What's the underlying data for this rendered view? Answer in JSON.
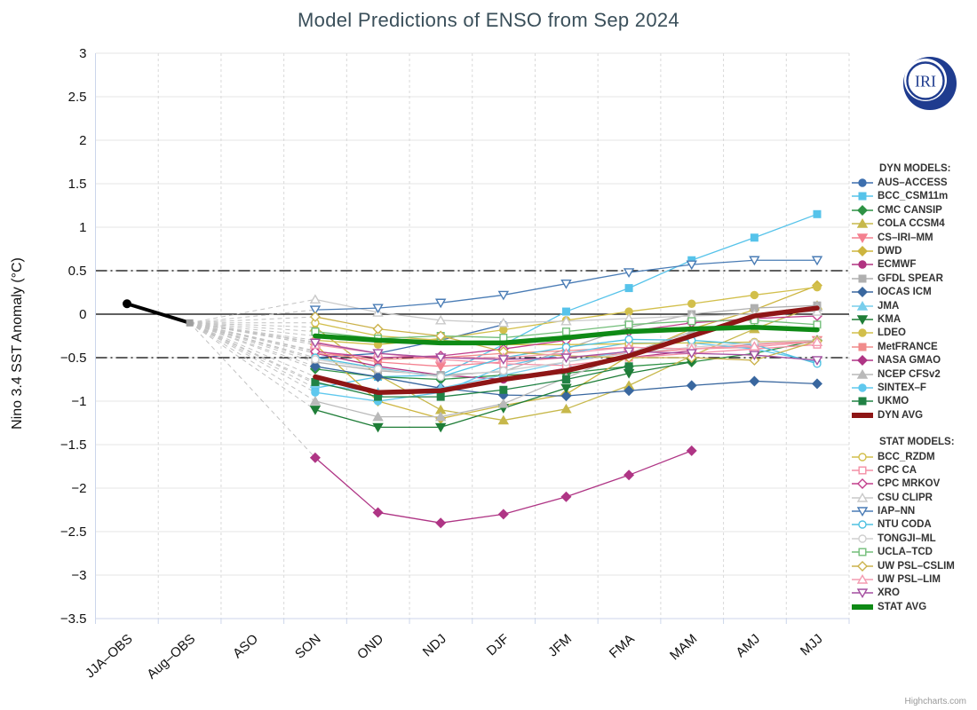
{
  "title": "Model Predictions of ENSO from Sep 2024",
  "logo_text": "IRI",
  "credits": "Highcharts.com",
  "legend": {
    "dyn_header": "DYN MODELS:",
    "stat_header": "STAT MODELS:"
  },
  "chart_data": {
    "type": "line",
    "title": "Model Predictions of ENSO from Sep 2024",
    "xlabel": "",
    "ylabel": "Nino 3.4 SST Anomaly (°C)",
    "ylim": [
      -3.5,
      3
    ],
    "ytick_step": 0.5,
    "grid": true,
    "legend_position": "right",
    "reference_lines": [
      0.5,
      0,
      -0.5
    ],
    "categories": [
      "JJA–OBS",
      "Aug–OBS",
      "ASO",
      "SON",
      "OND",
      "NDJ",
      "DJF",
      "JFM",
      "FMA",
      "MAM",
      "AMJ",
      "MJJ"
    ],
    "observation": {
      "name": "OBS",
      "color": "#000000",
      "marker": "circle",
      "filled": true,
      "width": 4,
      "values": [
        0.12,
        -0.1,
        null,
        null,
        null,
        null,
        null,
        null,
        null,
        null,
        null,
        null
      ]
    },
    "fan_color": "#c2c2c2",
    "series": [
      {
        "name": "AUS–ACCESS",
        "group": "dyn",
        "color": "#3D6FAE",
        "marker": "circle",
        "filled": true,
        "values": [
          null,
          null,
          null,
          -0.5,
          -0.45,
          -0.3,
          -0.12,
          null,
          null,
          null,
          null,
          null
        ]
      },
      {
        "name": "BCC_CSM11m",
        "group": "dyn",
        "color": "#56C3EA",
        "marker": "square",
        "filled": true,
        "values": [
          null,
          null,
          null,
          -0.85,
          -0.72,
          -0.7,
          -0.35,
          0.03,
          0.3,
          0.62,
          0.88,
          1.15
        ]
      },
      {
        "name": "CMC CANSIP",
        "group": "dyn",
        "color": "#2E9245",
        "marker": "diamond",
        "filled": true,
        "values": [
          null,
          null,
          null,
          -0.63,
          -0.72,
          -0.75,
          -0.7,
          -0.68,
          -0.6,
          -0.55,
          -0.45,
          -0.3
        ]
      },
      {
        "name": "COLA CCSM4",
        "group": "dyn",
        "color": "#C7B84B",
        "marker": "triangle",
        "filled": true,
        "values": [
          null,
          null,
          null,
          -0.15,
          -0.7,
          -1.1,
          -1.22,
          -1.09,
          -0.82,
          -0.48,
          -0.17,
          0.1
        ]
      },
      {
        "name": "CS–IRI–MM",
        "group": "dyn",
        "color": "#F4808F",
        "marker": "triangle-down",
        "filled": true,
        "values": [
          null,
          null,
          null,
          -0.42,
          -0.55,
          -0.6,
          -0.55,
          -0.5,
          -0.45,
          -0.4,
          -0.35,
          -0.3
        ]
      },
      {
        "name": "DWD",
        "group": "dyn",
        "color": "#CDB53F",
        "marker": "diamond",
        "filled": true,
        "values": [
          null,
          null,
          null,
          -0.35,
          -1.0,
          -1.2,
          -1.05,
          -0.92,
          -0.48,
          -0.17,
          0.05,
          0.33
        ]
      },
      {
        "name": "ECMWF",
        "group": "dyn",
        "color": "#B13381",
        "marker": "circle",
        "filled": true,
        "values": [
          null,
          null,
          null,
          -0.45,
          -0.6,
          -0.7,
          -0.75,
          -0.62,
          -0.5,
          -0.42,
          null,
          null
        ]
      },
      {
        "name": "GFDL SPEAR",
        "group": "dyn",
        "color": "#AFAFAF",
        "marker": "square",
        "filled": true,
        "values": [
          null,
          null,
          null,
          -0.55,
          -0.65,
          -0.7,
          -0.66,
          -0.4,
          -0.15,
          0.0,
          0.07,
          0.1
        ]
      },
      {
        "name": "IOCAS ICM",
        "group": "dyn",
        "color": "#39679F",
        "marker": "diamond",
        "filled": true,
        "values": [
          null,
          null,
          null,
          -0.6,
          -0.72,
          -0.85,
          -0.93,
          -0.94,
          -0.88,
          -0.82,
          -0.77,
          -0.8
        ]
      },
      {
        "name": "JMA",
        "group": "dyn",
        "color": "#79CEEC",
        "marker": "triangle",
        "filled": true,
        "values": [
          null,
          null,
          null,
          -0.8,
          -0.9,
          -0.85,
          -0.7,
          -0.55,
          -0.42,
          null,
          null,
          null
        ]
      },
      {
        "name": "KMA",
        "group": "dyn",
        "color": "#1E7D37",
        "marker": "triangle-down",
        "filled": true,
        "values": [
          null,
          null,
          null,
          -1.1,
          -1.3,
          -1.3,
          -1.08,
          -0.85,
          -0.68,
          -0.55,
          null,
          null
        ]
      },
      {
        "name": "LDEO",
        "group": "dyn",
        "color": "#D2BF4B",
        "marker": "circle",
        "filled": true,
        "values": [
          null,
          null,
          null,
          -0.3,
          -0.35,
          -0.28,
          -0.18,
          -0.07,
          0.03,
          0.12,
          0.22,
          0.31
        ]
      },
      {
        "name": "MetFRANCE",
        "group": "dyn",
        "color": "#F18B8B",
        "marker": "square",
        "filled": true,
        "values": [
          null,
          null,
          null,
          -0.45,
          -0.52,
          -0.5,
          -0.45,
          -0.42,
          -0.38,
          -0.4,
          -0.38,
          -0.3
        ]
      },
      {
        "name": "NASA GMAO",
        "group": "dyn",
        "color": "#AF3585",
        "marker": "diamond",
        "filled": true,
        "values": [
          null,
          null,
          null,
          -1.65,
          -2.28,
          -2.4,
          -2.3,
          -2.1,
          -1.85,
          -1.57,
          null,
          null
        ]
      },
      {
        "name": "NCEP CFSv2",
        "group": "dyn",
        "color": "#B9B9B9",
        "marker": "triangle",
        "filled": true,
        "values": [
          null,
          null,
          null,
          -1.0,
          -1.18,
          -1.18,
          -1.03,
          -0.73,
          -0.45,
          -0.2,
          -0.05,
          0.08
        ]
      },
      {
        "name": "SINTEX–F",
        "group": "dyn",
        "color": "#5FC8EE",
        "marker": "circle",
        "filled": true,
        "values": [
          null,
          null,
          null,
          -0.9,
          -1.0,
          -0.9,
          -0.6,
          -0.45,
          -0.33,
          -0.33,
          -0.4,
          -0.55
        ]
      },
      {
        "name": "UKMO",
        "group": "dyn",
        "color": "#208244",
        "marker": "square",
        "filled": true,
        "values": [
          null,
          null,
          null,
          -0.78,
          -0.95,
          -0.95,
          -0.87,
          -0.75,
          -0.6,
          null,
          null,
          null
        ]
      },
      {
        "name": "DYN AVG",
        "group": "dyn",
        "color": "#8E1616",
        "marker": "none",
        "filled": true,
        "width": 5.5,
        "values": [
          null,
          null,
          null,
          -0.72,
          -0.9,
          -0.88,
          -0.75,
          -0.65,
          -0.48,
          -0.25,
          -0.02,
          0.07
        ]
      },
      {
        "name": "BCC_RZDM",
        "group": "stat",
        "color": "#D2BF4B",
        "marker": "circle",
        "filled": false,
        "values": [
          null,
          null,
          null,
          -0.1,
          -0.25,
          -0.3,
          -0.35,
          -0.35,
          -0.34,
          -0.33,
          -0.32,
          -0.3
        ]
      },
      {
        "name": "CPC CA",
        "group": "stat",
        "color": "#F48FA5",
        "marker": "square",
        "filled": false,
        "values": [
          null,
          null,
          null,
          -0.32,
          -0.45,
          -0.52,
          -0.57,
          -0.59,
          -0.5,
          -0.45,
          -0.4,
          -0.35
        ]
      },
      {
        "name": "CPC MRKOV",
        "group": "stat",
        "color": "#C23E8C",
        "marker": "diamond",
        "filled": false,
        "values": [
          null,
          null,
          null,
          -0.43,
          -0.5,
          -0.48,
          -0.4,
          -0.3,
          -0.2,
          -0.1,
          -0.05,
          -0.02
        ]
      },
      {
        "name": "CSU CLIPR",
        "group": "stat",
        "color": "#C9C9C9",
        "marker": "triangle",
        "filled": false,
        "values": [
          null,
          null,
          null,
          0.17,
          0.02,
          -0.07,
          -0.1,
          -0.08,
          -0.05,
          -0.02,
          0.0,
          0.03
        ]
      },
      {
        "name": "IAP–NN",
        "group": "stat",
        "color": "#4A7CB5",
        "marker": "triangle-down",
        "filled": false,
        "values": [
          null,
          null,
          null,
          0.05,
          0.07,
          0.13,
          0.22,
          0.35,
          0.48,
          0.57,
          0.62,
          0.62
        ]
      },
      {
        "name": "NTU CODA",
        "group": "stat",
        "color": "#4FC1E1",
        "marker": "circle",
        "filled": false,
        "values": [
          null,
          null,
          null,
          -0.5,
          -0.62,
          -0.72,
          -0.5,
          -0.38,
          -0.29,
          -0.3,
          -0.35,
          -0.57
        ]
      },
      {
        "name": "TONGJI–ML",
        "group": "stat",
        "color": "#CFCFCF",
        "marker": "circle",
        "filled": false,
        "values": [
          null,
          null,
          null,
          -0.52,
          -0.63,
          -0.72,
          -0.65,
          -0.55,
          -0.45,
          -0.38,
          -0.33,
          -0.3
        ]
      },
      {
        "name": "UCLA–TCD",
        "group": "stat",
        "color": "#72BE79",
        "marker": "square",
        "filled": false,
        "values": [
          null,
          null,
          null,
          -0.2,
          -0.28,
          -0.25,
          -0.27,
          -0.2,
          -0.12,
          -0.08,
          -0.07,
          -0.12
        ]
      },
      {
        "name": "UW PSL–CSLIM",
        "group": "stat",
        "color": "#CBB24B",
        "marker": "diamond",
        "filled": false,
        "values": [
          null,
          null,
          null,
          -0.03,
          -0.17,
          -0.25,
          -0.43,
          -0.48,
          -0.5,
          -0.5,
          -0.53,
          -0.31
        ]
      },
      {
        "name": "UW PSL–LIM",
        "group": "stat",
        "color": "#F49BB1",
        "marker": "triangle",
        "filled": false,
        "values": [
          null,
          null,
          null,
          -0.35,
          -0.45,
          -0.5,
          -0.5,
          -0.45,
          -0.38,
          -0.4,
          -0.37,
          -0.32
        ]
      },
      {
        "name": "XRO",
        "group": "stat",
        "color": "#A44FA0",
        "marker": "triangle-down",
        "filled": false,
        "values": [
          null,
          null,
          null,
          -0.33,
          -0.45,
          -0.5,
          -0.52,
          -0.5,
          -0.43,
          -0.45,
          -0.47,
          -0.53
        ]
      },
      {
        "name": "STAT AVG",
        "group": "stat",
        "color": "#0E8A15",
        "marker": "none",
        "filled": true,
        "width": 5.5,
        "values": [
          null,
          null,
          null,
          -0.25,
          -0.3,
          -0.33,
          -0.33,
          -0.27,
          -0.2,
          -0.17,
          -0.15,
          -0.18
        ]
      }
    ]
  }
}
